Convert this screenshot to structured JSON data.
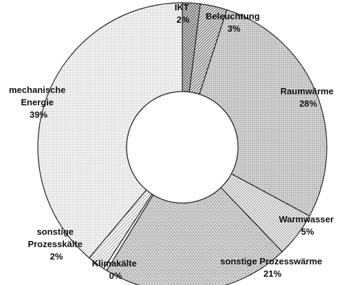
{
  "chart_data": {
    "type": "pie",
    "donut": true,
    "title": "",
    "legend": "none",
    "slices": [
      {
        "label_lines": [
          "IKT",
          "2%"
        ],
        "value": 2,
        "pattern": "crosshatch"
      },
      {
        "label_lines": [
          "Beleuchtung",
          "3%"
        ],
        "value": 3,
        "pattern": "diagonal"
      },
      {
        "label_lines": [
          "Raumwärme",
          "28%"
        ],
        "value": 28,
        "pattern": "dense-dots"
      },
      {
        "label_lines": [
          "Warmwasser",
          "5%"
        ],
        "value": 5,
        "pattern": "grid-dots"
      },
      {
        "label_lines": [
          "sonstige Prozesswärme",
          "21%"
        ],
        "value": 21,
        "pattern": "vertical-dashes"
      },
      {
        "label_lines": [
          "Klimakälte",
          "0%"
        ],
        "value": 0.4,
        "pattern": "plain"
      },
      {
        "label_lines": [
          "sonstige",
          "Prozesskälte",
          "2%"
        ],
        "value": 2,
        "pattern": "diagonal-light"
      },
      {
        "label_lines": [
          "mechanische",
          "Energie",
          "39%"
        ],
        "value": 39,
        "pattern": "sparse-dots"
      }
    ]
  }
}
